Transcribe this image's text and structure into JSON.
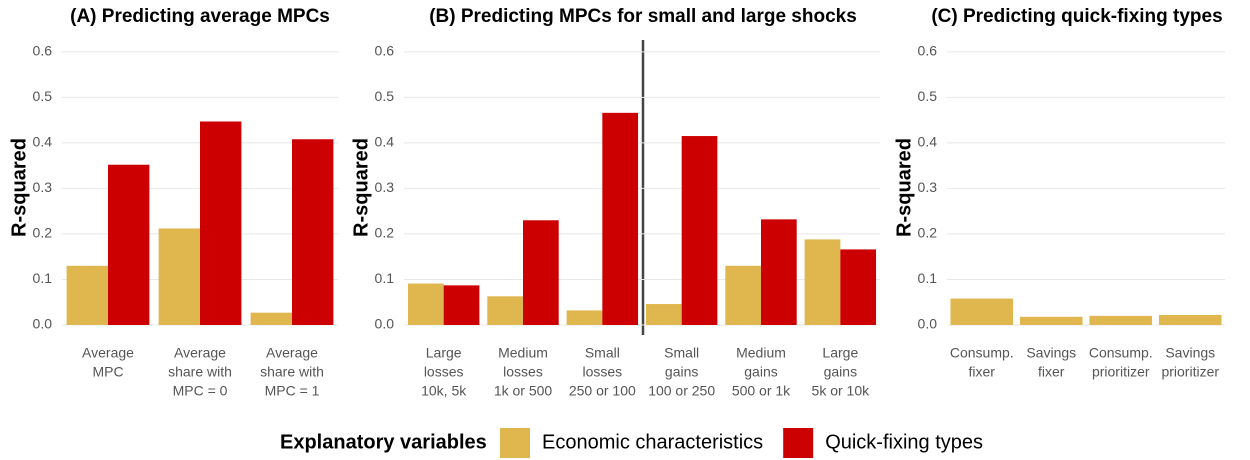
{
  "chart_data": [
    {
      "type": "bar",
      "title": "(A) Predicting average MPCs",
      "ylabel": "R-squared",
      "categories": [
        [
          "Average",
          "MPC"
        ],
        [
          "Average",
          "share with",
          "MPC = 0"
        ],
        [
          "Average",
          "share with",
          "MPC = 1"
        ]
      ],
      "series": [
        {
          "name": "Economic characteristics",
          "color": "#e0b64e",
          "values": [
            0.13,
            0.212,
            0.027
          ]
        },
        {
          "name": "Quick-fixing types",
          "color": "#cc0000",
          "values": [
            0.352,
            0.447,
            0.408
          ]
        }
      ],
      "ylim": [
        -0.022,
        0.626
      ],
      "yticks": [
        {
          "value": 0,
          "label": "0.0"
        },
        0.1,
        0.2,
        0.3,
        0.4,
        0.5,
        0.6
      ],
      "grid": true
    },
    {
      "type": "bar",
      "title": "(B) Predicting MPCs for small and large shocks",
      "ylabel": "R-squared",
      "categories": [
        [
          "Large",
          "losses",
          "10k, 5k"
        ],
        [
          "Medium",
          "losses",
          "1k or 500"
        ],
        [
          "Small",
          "losses",
          "250 or 100"
        ],
        [
          "Small",
          "gains",
          "100 or 250"
        ],
        [
          "Medium",
          "gains",
          "500 or 1k"
        ],
        [
          "Large",
          "gains",
          "5k or 10k"
        ]
      ],
      "series": [
        {
          "name": "Economic characteristics",
          "color": "#e0b64e",
          "values": [
            0.091,
            0.063,
            0.032,
            0.046,
            0.13,
            0.188
          ]
        },
        {
          "name": "Quick-fixing types",
          "color": "#cc0000",
          "values": [
            0.087,
            0.23,
            0.466,
            0.415,
            0.232,
            0.166
          ]
        }
      ],
      "ylim": [
        -0.022,
        0.626
      ],
      "yticks": [
        {
          "value": 0,
          "label": "0.0"
        },
        0.1,
        0.2,
        0.3,
        0.4,
        0.5,
        0.6
      ],
      "grid": true
    },
    {
      "type": "bar",
      "title": "(C) Predicting quick-fixing types",
      "ylabel": "R-squared",
      "categories": [
        [
          "Consump.",
          "fixer"
        ],
        [
          "Savings",
          "fixer"
        ],
        [
          "Consump.",
          "prioritizer"
        ],
        [
          "Savings",
          "prioritizer"
        ]
      ],
      "series": [
        {
          "name": "Economic characteristics",
          "color": "#e0b64e",
          "values": [
            0.058,
            0.018,
            0.02,
            0.022
          ]
        }
      ],
      "ylim": [
        -0.022,
        0.626
      ],
      "yticks": [
        {
          "value": 0,
          "label": "0.0"
        },
        0.1,
        0.2,
        0.3,
        0.4,
        0.5,
        0.6
      ],
      "grid": true
    }
  ],
  "legend": {
    "title": "Explanatory variables"
  }
}
